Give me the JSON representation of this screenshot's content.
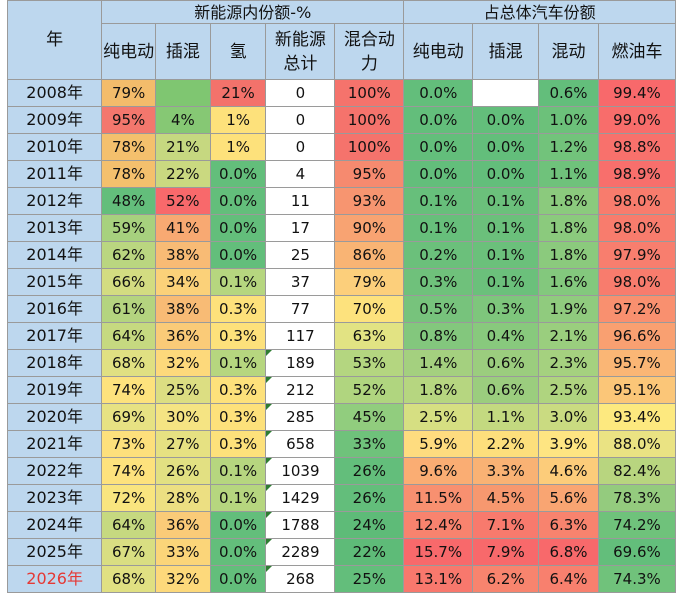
{
  "header": {
    "year": "年",
    "group_nev": "新能源内份额-%",
    "group_total": "占总体汽车份额",
    "cols": [
      "纯电动",
      "插混",
      "氢",
      "新能源总计",
      "混合动力",
      "纯电动",
      "插混",
      "混动",
      "燃油车"
    ]
  },
  "rows": [
    {
      "year": "2008年",
      "ev": "79%",
      "phev": "",
      "h2": "21%",
      "total": "0",
      "hybrid": "100%",
      "s_ev": "0.0%",
      "s_phev": "",
      "s_hev": "0.6%",
      "s_ice": "99.4%",
      "colors": [
        "#f3bc6b",
        "#7fc671",
        "#f3726b",
        "#ffffff",
        "#f5736c",
        "#63be7b",
        "#ffffff",
        "#63be7b",
        "#f8696b"
      ]
    },
    {
      "year": "2009年",
      "ev": "95%",
      "phev": "4%",
      "h2": "1%",
      "total": "0",
      "hybrid": "100%",
      "s_ev": "0.0%",
      "s_phev": "0.0%",
      "s_hev": "1.0%",
      "s_ice": "99.0%",
      "colors": [
        "#f3776d",
        "#86c874",
        "#fde17b",
        "#ffffff",
        "#f5736c",
        "#63be7b",
        "#63be7b",
        "#6cc17a",
        "#f86d6b"
      ]
    },
    {
      "year": "2010年",
      "ev": "78%",
      "phev": "21%",
      "h2": "1%",
      "total": "0",
      "hybrid": "100%",
      "s_ev": "0.0%",
      "s_phev": "0.0%",
      "s_hev": "1.2%",
      "s_ice": "98.8%",
      "colors": [
        "#f4c06d",
        "#c6d880",
        "#fde17b",
        "#ffffff",
        "#f5736c",
        "#63be7b",
        "#63be7b",
        "#72c37b",
        "#f8716c"
      ]
    },
    {
      "year": "2011年",
      "ev": "78%",
      "phev": "22%",
      "h2": "0.0%",
      "total": "4",
      "hybrid": "95%",
      "s_ev": "0.0%",
      "s_phev": "0.0%",
      "s_hev": "1.1%",
      "s_ice": "98.9%",
      "colors": [
        "#f4c06d",
        "#cad980",
        "#63be7b",
        "#ffffff",
        "#f68a6f",
        "#63be7b",
        "#63be7b",
        "#6fc27b",
        "#f86f6c"
      ]
    },
    {
      "year": "2012年",
      "ev": "48%",
      "phev": "52%",
      "h2": "0.0%",
      "total": "11",
      "hybrid": "93%",
      "s_ev": "0.1%",
      "s_phev": "0.1%",
      "s_hev": "1.8%",
      "s_ice": "98.0%",
      "colors": [
        "#63be7b",
        "#f8696b",
        "#63be7b",
        "#ffffff",
        "#f79570",
        "#67bf7b",
        "#6bc07b",
        "#8bca7d",
        "#f87c6d"
      ]
    },
    {
      "year": "2013年",
      "ev": "59%",
      "phev": "41%",
      "h2": "0.0%",
      "total": "17",
      "hybrid": "90%",
      "s_ev": "0.1%",
      "s_phev": "0.1%",
      "s_hev": "1.8%",
      "s_ice": "98.0%",
      "colors": [
        "#a7d17e",
        "#f8a972",
        "#63be7b",
        "#ffffff",
        "#f8a372",
        "#67bf7b",
        "#6bc07b",
        "#8bca7d",
        "#f87c6d"
      ]
    },
    {
      "year": "2014年",
      "ev": "62%",
      "phev": "38%",
      "h2": "0.0%",
      "total": "25",
      "hybrid": "86%",
      "s_ev": "0.2%",
      "s_phev": "0.1%",
      "s_hev": "1.8%",
      "s_ice": "97.9%",
      "colors": [
        "#bad680",
        "#f8bb75",
        "#63be7b",
        "#ffffff",
        "#f9b474",
        "#6bc07b",
        "#6bc07b",
        "#8bca7d",
        "#f87e6e"
      ]
    },
    {
      "year": "2015年",
      "ev": "66%",
      "phev": "34%",
      "h2": "0.1%",
      "total": "37",
      "hybrid": "79%",
      "s_ev": "0.3%",
      "s_phev": "0.1%",
      "s_hev": "1.6%",
      "s_ice": "98.0%",
      "colors": [
        "#d3dc81",
        "#fbd179",
        "#b6d67f",
        "#ffffff",
        "#fccf7b",
        "#6fc17b",
        "#6bc07b",
        "#83c87d",
        "#f87c6d"
      ]
    },
    {
      "year": "2016年",
      "ev": "61%",
      "phev": "38%",
      "h2": "0.3%",
      "total": "77",
      "hybrid": "70%",
      "s_ev": "0.5%",
      "s_phev": "0.3%",
      "s_hev": "1.9%",
      "s_ice": "97.2%",
      "colors": [
        "#b4d47f",
        "#f8bb75",
        "#fde17b",
        "#ffffff",
        "#fde27d",
        "#77c37c",
        "#7ec67c",
        "#90cb7e",
        "#f9906f"
      ]
    },
    {
      "year": "2017年",
      "ev": "64%",
      "phev": "36%",
      "h2": "0.3%",
      "total": "117",
      "hybrid": "63%",
      "s_ev": "0.8%",
      "s_phev": "0.4%",
      "s_hev": "2.1%",
      "s_ice": "96.6%",
      "colors": [
        "#c6d980",
        "#facb78",
        "#fde17b",
        "#ffffff",
        "#e2e383",
        "#83c77d",
        "#88c97d",
        "#9ace7e",
        "#f9a071"
      ]
    },
    {
      "year": "2018年",
      "ev": "68%",
      "phev": "32%",
      "h2": "0.1%",
      "total": "189",
      "hybrid": "53%",
      "s_ev": "1.4%",
      "s_phev": "0.6%",
      "s_hev": "2.3%",
      "s_ice": "95.7%",
      "colors": [
        "#e0e082",
        "#fdd97b",
        "#b6d67f",
        "#ffffff",
        "#b4d680",
        "#a4d07f",
        "#9bcd7e",
        "#a5d17f",
        "#fab675"
      ]
    },
    {
      "year": "2019年",
      "ev": "74%",
      "phev": "25%",
      "h2": "0.3%",
      "total": "212",
      "hybrid": "52%",
      "s_ev": "1.8%",
      "s_phev": "0.6%",
      "s_hev": "2.5%",
      "s_ice": "95.1%",
      "colors": [
        "#fde27d",
        "#dcde82",
        "#fde17b",
        "#ffffff",
        "#b0d57f",
        "#b6d680",
        "#9bcd7e",
        "#afd47f",
        "#fbc678"
      ]
    },
    {
      "year": "2020年",
      "ev": "69%",
      "phev": "30%",
      "h2": "0.3%",
      "total": "285",
      "hybrid": "45%",
      "s_ev": "2.5%",
      "s_phev": "1.1%",
      "s_hev": "3.0%",
      "s_ice": "93.4%",
      "colors": [
        "#e7e283",
        "#f5e483",
        "#fde17b",
        "#ffffff",
        "#91cd7e",
        "#d6df82",
        "#c3d980",
        "#cadb81",
        "#fde97f"
      ]
    },
    {
      "year": "2021年",
      "ev": "73%",
      "phev": "27%",
      "h2": "0.3%",
      "total": "658",
      "hybrid": "33%",
      "s_ev": "5.9%",
      "s_phev": "2.2%",
      "s_hev": "3.9%",
      "s_ice": "88.0%",
      "colors": [
        "#fde07c",
        "#e6e182",
        "#fde17b",
        "#ffffff",
        "#6fc27b",
        "#fedc7f",
        "#fddf7c",
        "#fee582",
        "#eae383"
      ]
    },
    {
      "year": "2022年",
      "ev": "74%",
      "phev": "26%",
      "h2": "0.1%",
      "total": "1039",
      "hybrid": "26%",
      "s_ev": "9.6%",
      "s_phev": "3.3%",
      "s_hev": "4.6%",
      "s_ice": "82.4%",
      "colors": [
        "#fde27d",
        "#e2e082",
        "#b6d67f",
        "#ffffff",
        "#63be7b",
        "#faad73",
        "#f9b274",
        "#fccc7a",
        "#b8d57f"
      ]
    },
    {
      "year": "2023年",
      "ev": "72%",
      "phev": "28%",
      "h2": "0.1%",
      "total": "1429",
      "hybrid": "26%",
      "s_ev": "11.5%",
      "s_phev": "4.5%",
      "s_hev": "5.6%",
      "s_ice": "78.3%",
      "colors": [
        "#f9e57f",
        "#ecdf82",
        "#b6d67f",
        "#ffffff",
        "#63be7b",
        "#f89070",
        "#f7986f",
        "#f9a572",
        "#94cb7e"
      ]
    },
    {
      "year": "2024年",
      "ev": "64%",
      "phev": "36%",
      "h2": "0.0%",
      "total": "1788",
      "hybrid": "24%",
      "s_ev": "12.4%",
      "s_phev": "7.1%",
      "s_hev": "6.3%",
      "s_ice": "74.2%",
      "colors": [
        "#c6d980",
        "#facb78",
        "#63be7b",
        "#ffffff",
        "#5ebb78",
        "#f8836e",
        "#f87a6d",
        "#f8836e",
        "#6fc27b"
      ]
    },
    {
      "year": "2025年",
      "ev": "67%",
      "phev": "33%",
      "h2": "0.0%",
      "total": "2289",
      "hybrid": "22%",
      "s_ev": "15.7%",
      "s_phev": "7.9%",
      "s_hev": "6.8%",
      "s_ice": "69.6%",
      "colors": [
        "#d9de82",
        "#fbd579",
        "#63be7b",
        "#ffffff",
        "#5ebb78",
        "#f8696b",
        "#f8696b",
        "#f8696b",
        "#63be7b"
      ]
    },
    {
      "year": "2026年",
      "ev": "68%",
      "phev": "32%",
      "h2": "0.0%",
      "total": "268",
      "hybrid": "25%",
      "s_ev": "13.1%",
      "s_phev": "6.2%",
      "s_hev": "6.4%",
      "s_ice": "74.3%",
      "colors": [
        "#e0e082",
        "#fdd97b",
        "#63be7b",
        "#ffffff",
        "#63be7b",
        "#f8786d",
        "#f8846e",
        "#f8806e",
        "#70c27b"
      ],
      "year_red": true
    }
  ],
  "flag_rows_from": 10
}
